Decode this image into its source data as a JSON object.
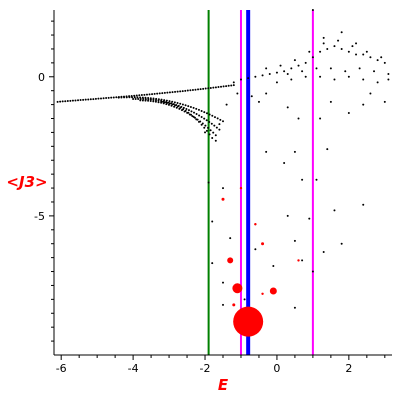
{
  "chart_data": {
    "type": "scatter",
    "title": "",
    "xlabel": "E",
    "ylabel": "<J3>",
    "xlim": [
      -6.2,
      3.2
    ],
    "ylim": [
      -10.0,
      2.4
    ],
    "x_ticks": [
      -6,
      -4,
      -2,
      0,
      2
    ],
    "y_ticks": [
      0,
      -5
    ],
    "grid": false,
    "colors": {
      "axis_label": "#ff0000",
      "points": "#000000",
      "highlight_points": "#ff0000",
      "line_green": "#008000",
      "line_blue": "#0000ff",
      "line_magenta": "#ff00ff"
    },
    "vertical_lines": [
      {
        "x": -1.9,
        "color": "#008000",
        "width": 2
      },
      {
        "x": -1.0,
        "color": "#ff00ff",
        "width": 2
      },
      {
        "x": -0.8,
        "color": "#0000ff",
        "width": 4
      },
      {
        "x": 1.0,
        "color": "#ff00ff",
        "width": 2
      }
    ],
    "black_bands": [
      {
        "x0": -6.1,
        "x1": -1.2,
        "y0": -0.9,
        "y1": -0.4,
        "slope_end": -0.3,
        "n": 70
      },
      {
        "x0": -4.4,
        "x1": -1.5,
        "y0": -0.75,
        "y1": -0.55,
        "slope_end": -1.6,
        "n": 40
      },
      {
        "x0": -4.0,
        "x1": -1.6,
        "y0": -0.8,
        "y1": -0.7,
        "slope_end": -1.9,
        "n": 35
      },
      {
        "x0": -3.8,
        "x1": -1.7,
        "y0": -0.85,
        "y1": -0.9,
        "slope_end": -2.1,
        "n": 30
      },
      {
        "x0": -3.2,
        "x1": -1.8,
        "y0": -0.9,
        "y1": -1.2,
        "slope_end": -2.2,
        "n": 20
      }
    ],
    "black_points": [
      [
        -1.2,
        -0.2
      ],
      [
        -1.0,
        -0.1
      ],
      [
        -0.8,
        -0.05
      ],
      [
        -0.6,
        0.0
      ],
      [
        -0.4,
        0.05
      ],
      [
        -0.2,
        0.1
      ],
      [
        0.0,
        0.15
      ],
      [
        0.2,
        0.2
      ],
      [
        0.4,
        0.3
      ],
      [
        0.6,
        0.4
      ],
      [
        0.8,
        0.5
      ],
      [
        1.0,
        0.7
      ],
      [
        1.2,
        0.9
      ],
      [
        1.4,
        1.0
      ],
      [
        1.6,
        1.1
      ],
      [
        1.8,
        1.0
      ],
      [
        2.0,
        0.9
      ],
      [
        2.2,
        0.8
      ],
      [
        2.4,
        0.8
      ],
      [
        2.6,
        0.7
      ],
      [
        2.8,
        0.6
      ],
      [
        3.0,
        0.5
      ],
      [
        -0.3,
        0.3
      ],
      [
        0.1,
        0.4
      ],
      [
        0.5,
        0.6
      ],
      [
        0.9,
        0.9
      ],
      [
        1.3,
        1.2
      ],
      [
        1.7,
        1.3
      ],
      [
        2.1,
        1.1
      ],
      [
        2.5,
        0.9
      ],
      [
        2.9,
        0.7
      ],
      [
        0.3,
        0.1
      ],
      [
        0.7,
        0.2
      ],
      [
        1.1,
        0.3
      ],
      [
        1.5,
        0.3
      ],
      [
        1.9,
        0.2
      ],
      [
        2.3,
        0.3
      ],
      [
        2.7,
        0.2
      ],
      [
        3.1,
        0.1
      ],
      [
        0.0,
        -0.2
      ],
      [
        0.4,
        -0.1
      ],
      [
        0.8,
        0.0
      ],
      [
        1.2,
        0.0
      ],
      [
        1.6,
        -0.1
      ],
      [
        2.0,
        0.0
      ],
      [
        2.4,
        -0.1
      ],
      [
        2.8,
        -0.2
      ],
      [
        3.1,
        -0.1
      ],
      [
        1.8,
        1.6
      ],
      [
        1.3,
        1.4
      ],
      [
        2.2,
        1.2
      ],
      [
        1.0,
        2.4
      ],
      [
        2.6,
        -0.6
      ],
      [
        3.0,
        -0.9
      ],
      [
        1.5,
        -0.9
      ],
      [
        -0.3,
        -0.6
      ],
      [
        -0.5,
        -0.9
      ],
      [
        -0.7,
        -0.7
      ],
      [
        -1.1,
        -0.6
      ],
      [
        -1.4,
        -1.0
      ],
      [
        -1.6,
        -1.7
      ],
      [
        0.3,
        -1.1
      ],
      [
        0.6,
        -1.5
      ],
      [
        1.2,
        -1.5
      ],
      [
        2.0,
        -1.3
      ],
      [
        2.4,
        -1.0
      ],
      [
        1.4,
        -2.6
      ],
      [
        0.5,
        -2.7
      ],
      [
        -0.3,
        -2.7
      ],
      [
        0.2,
        -3.1
      ],
      [
        0.7,
        -3.7
      ],
      [
        1.1,
        -3.7
      ],
      [
        2.4,
        -4.6
      ],
      [
        1.6,
        -4.8
      ],
      [
        0.9,
        -5.1
      ],
      [
        0.3,
        -5.0
      ],
      [
        -0.6,
        -5.3
      ],
      [
        -0.6,
        -6.2
      ],
      [
        -1.5,
        -4.0
      ],
      [
        -1.9,
        -3.8
      ],
      [
        -1.8,
        -6.7
      ],
      [
        -1.5,
        -7.4
      ],
      [
        -0.9,
        -8.0
      ],
      [
        -1.5,
        -8.2
      ],
      [
        0.5,
        -8.3
      ],
      [
        1.0,
        -7.0
      ],
      [
        1.3,
        -6.3
      ],
      [
        1.8,
        -6.0
      ],
      [
        0.5,
        -5.9
      ],
      [
        -0.1,
        -6.8
      ],
      [
        0.7,
        -6.6
      ],
      [
        -1.3,
        -5.8
      ],
      [
        -1.8,
        -5.2
      ],
      [
        -2.0,
        -2.0
      ],
      [
        -1.7,
        -2.3
      ]
    ],
    "red_points": [
      {
        "x": -0.8,
        "y": -8.8,
        "r": 15
      },
      {
        "x": -1.1,
        "y": -7.6,
        "r": 5
      },
      {
        "x": -0.1,
        "y": -7.7,
        "r": 3.5
      },
      {
        "x": -1.3,
        "y": -6.6,
        "r": 3
      },
      {
        "x": -1.5,
        "y": -4.4,
        "r": 1.5
      },
      {
        "x": -1.0,
        "y": -4.0,
        "r": 1.2
      },
      {
        "x": -0.6,
        "y": -5.3,
        "r": 1.2
      },
      {
        "x": -0.4,
        "y": -6.0,
        "r": 1.5
      },
      {
        "x": 0.6,
        "y": -6.6,
        "r": 1.2
      },
      {
        "x": -1.2,
        "y": -8.2,
        "r": 1.5
      },
      {
        "x": -0.4,
        "y": -7.8,
        "r": 1.2
      }
    ]
  }
}
